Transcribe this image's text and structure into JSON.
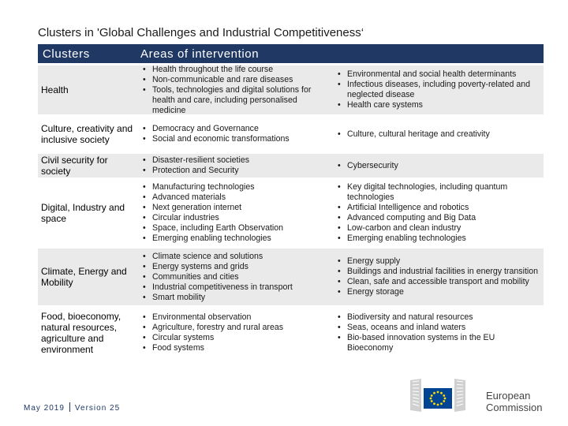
{
  "title": "Clusters in 'Global Challenges and Industrial Competitiveness‘",
  "header": {
    "col1": "Clusters",
    "col2": "Areas of intervention"
  },
  "rows": [
    {
      "cluster": "Health",
      "areas_a": [
        "Health throughout the life course",
        "Non-communicable and rare diseases",
        "Tools, technologies and digital solutions for health and care, including personalised medicine"
      ],
      "areas_b": [
        "Environmental and social health determinants",
        "Infectious diseases, including poverty-related and neglected disease",
        "Health care systems"
      ]
    },
    {
      "cluster": "Culture, creativity and inclusive society",
      "areas_a": [
        "Democracy and Governance",
        "Social and economic transformations"
      ],
      "areas_b": [
        "Culture, cultural heritage and creativity"
      ]
    },
    {
      "cluster": "Civil security for society",
      "areas_a": [
        "Disaster-resilient societies",
        "Protection and Security"
      ],
      "areas_b": [
        "Cybersecurity"
      ]
    },
    {
      "cluster": "Digital,  Industry and space",
      "areas_a": [
        "Manufacturing technologies",
        "Advanced materials",
        "Next generation internet",
        "Circular industries",
        "Space, including Earth Observation",
        "Emerging enabling technologies"
      ],
      "areas_b": [
        "Key digital technologies, including quantum technologies",
        "Artificial Intelligence and robotics",
        "Advanced computing and Big Data",
        "Low-carbon and clean industry",
        "Emerging enabling technologies"
      ]
    },
    {
      "cluster": "Climate, Energy and Mobility",
      "areas_a": [
        "Climate science and solutions",
        "Energy systems and grids",
        "Communities and cities",
        "Industrial competitiveness in transport",
        "Smart mobility"
      ],
      "areas_b": [
        "Energy supply",
        "Buildings and industrial facilities in energy transition",
        "Clean, safe and accessible transport and mobility",
        "Energy storage"
      ]
    },
    {
      "cluster": "Food,  bioeconomy, natural resources, agriculture and environment",
      "areas_a": [
        "Environmental observation",
        "Agriculture, forestry and rural areas",
        "Circular systems",
        "Food systems"
      ],
      "areas_b": [
        "Biodiversity and natural resources",
        "Seas, oceans and inland waters",
        "Bio-based innovation systems in the EU Bioeconomy"
      ]
    }
  ],
  "footer": {
    "date": "May 2019",
    "version": "Version 25"
  },
  "logo": {
    "line1": "European",
    "line2": "Commission",
    "flag_color": "#004494",
    "star_color": "#ffdd00"
  },
  "colors": {
    "header_bg": "#1f3864",
    "row_shade": "#eaeaea"
  }
}
